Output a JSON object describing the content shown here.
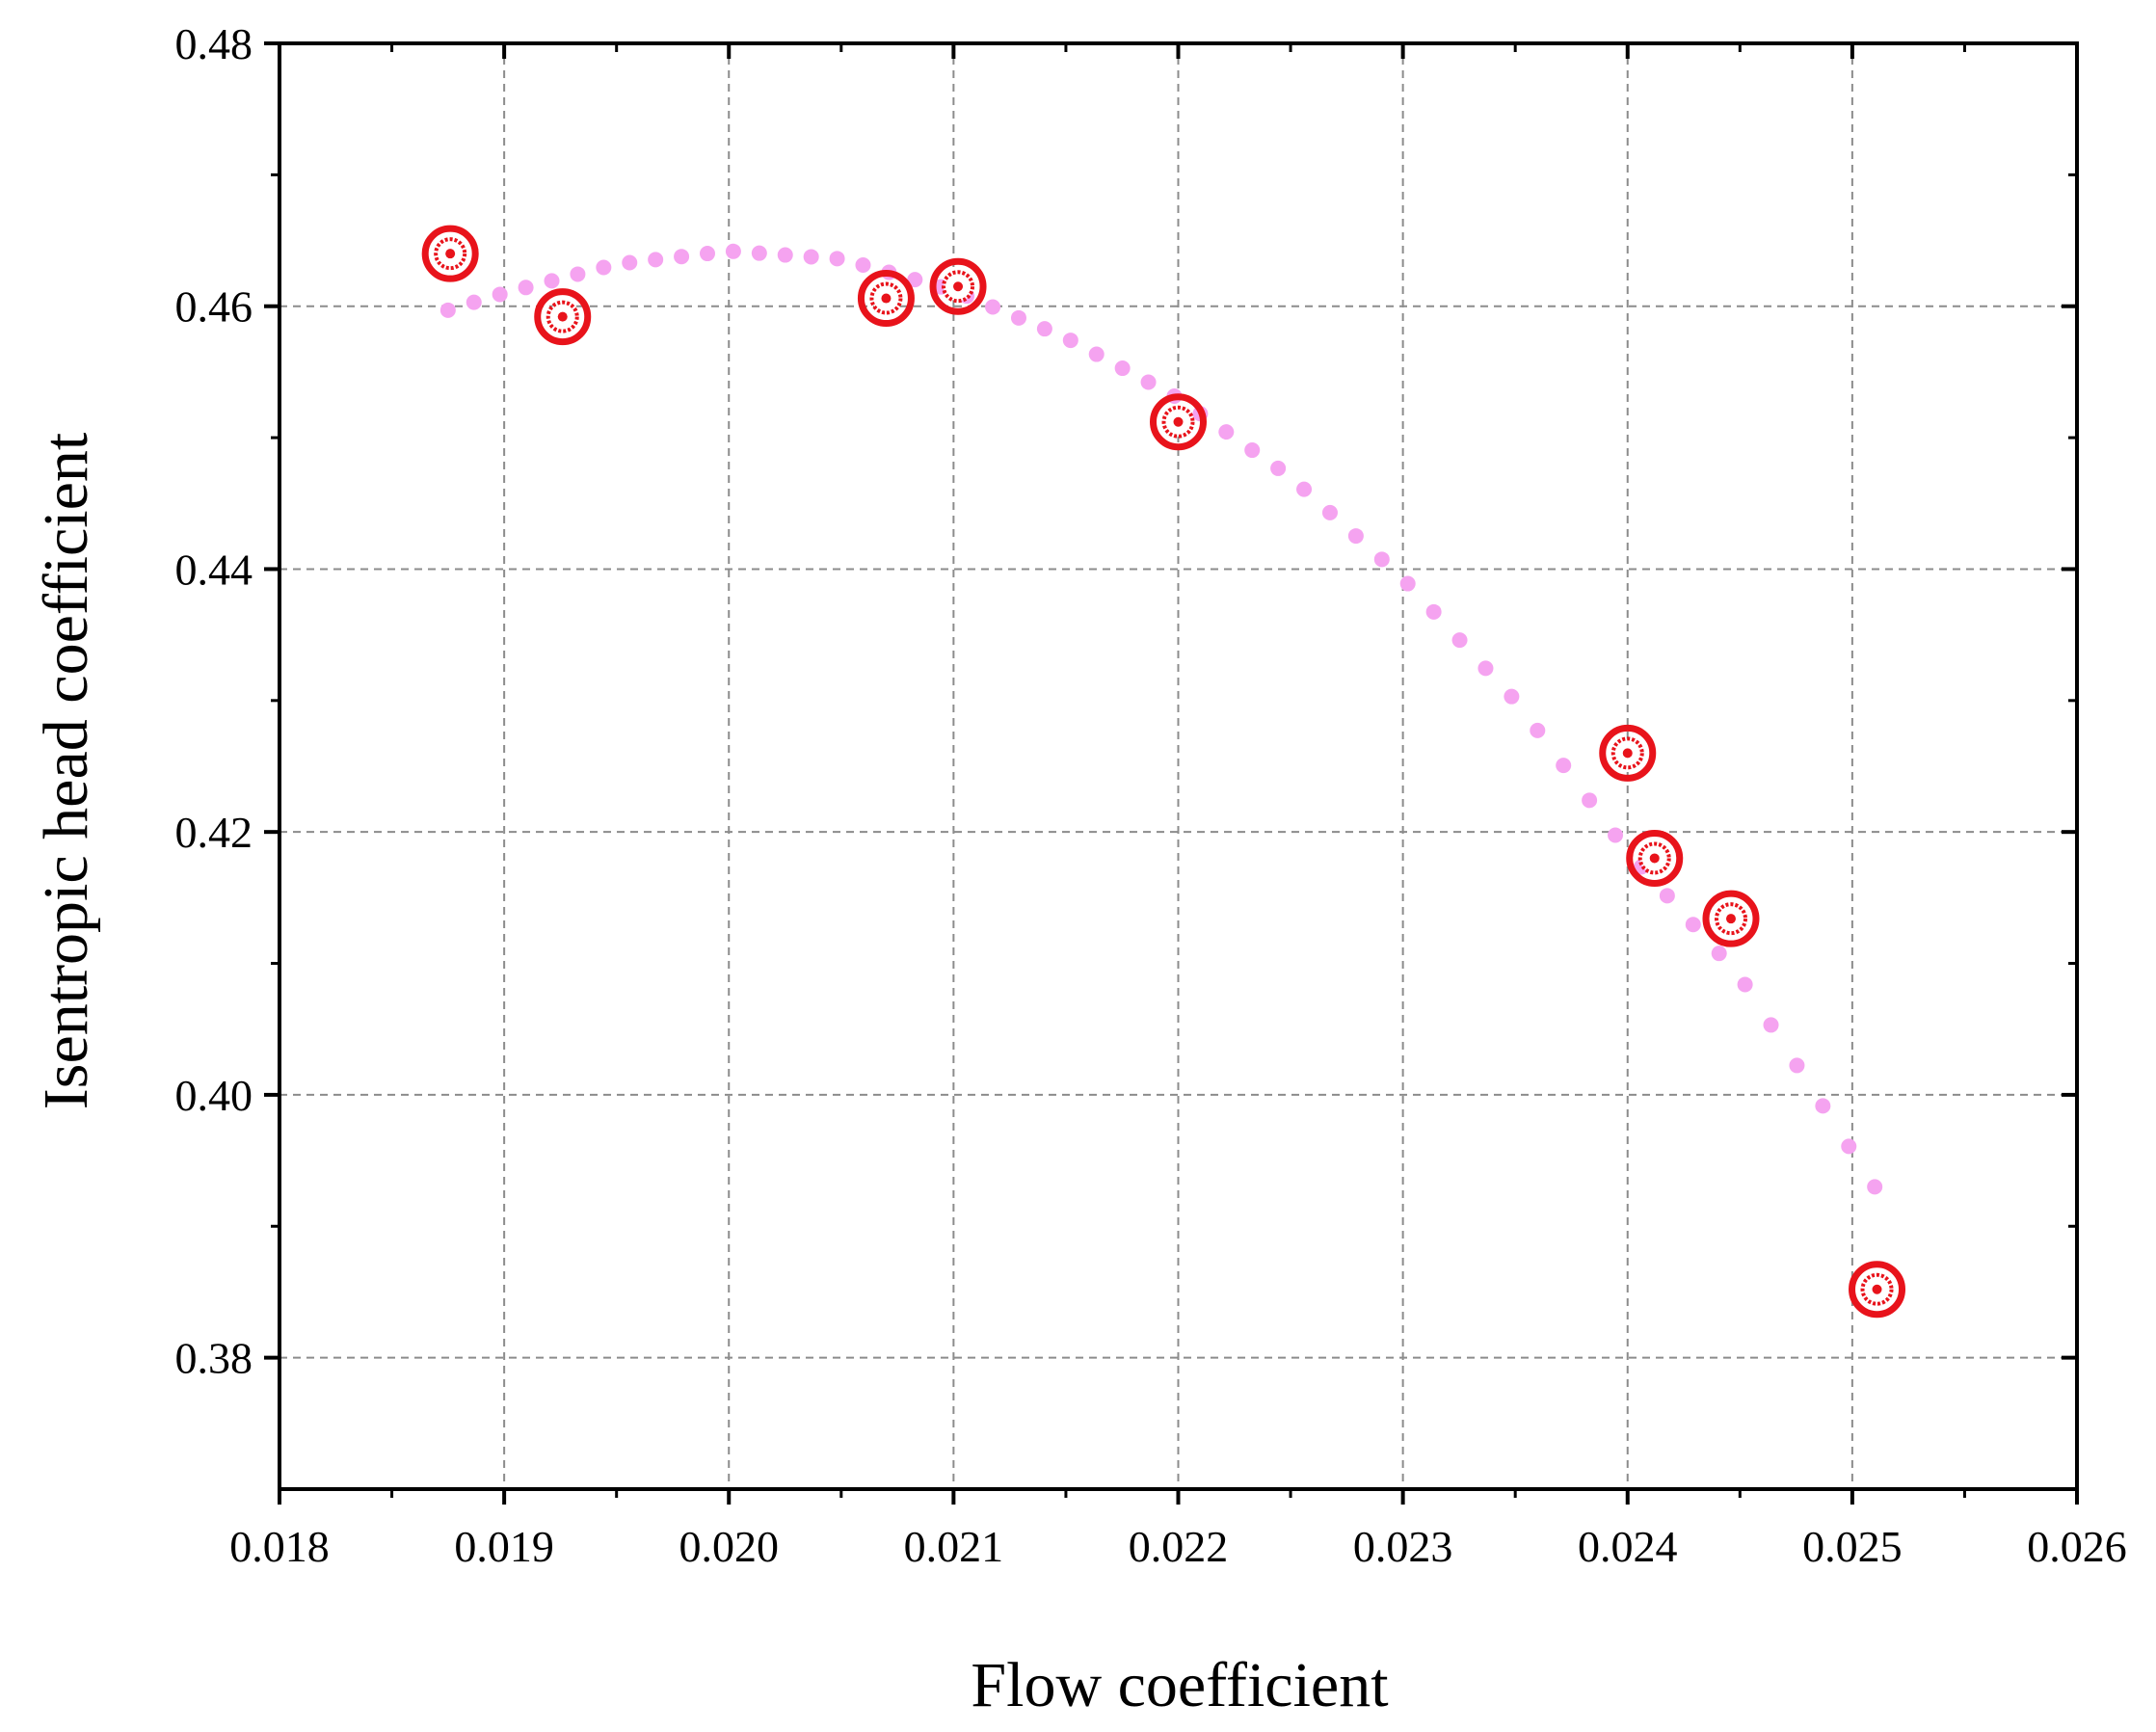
{
  "chart_data": {
    "type": "scatter",
    "title": "",
    "xlabel": "Flow coefficient",
    "ylabel": "Isentropic head coefficient",
    "xlim": [
      0.018,
      0.026
    ],
    "ylim": [
      0.37,
      0.48
    ],
    "x_ticks": [
      "0.018",
      "0.019",
      "0.020",
      "0.021",
      "0.022",
      "0.023",
      "0.024",
      "0.025",
      "0.026"
    ],
    "y_ticks": [
      "0.38",
      "0.40",
      "0.42",
      "0.44",
      "0.46",
      "0.48"
    ],
    "grid": true,
    "legend": "none",
    "series": [
      {
        "marker": "concentric-circle",
        "color": "#e8131b",
        "points": [
          {
            "x": 0.01876,
            "y": 0.464
          },
          {
            "x": 0.01926,
            "y": 0.4592
          },
          {
            "x": 0.0207,
            "y": 0.4606
          },
          {
            "x": 0.02102,
            "y": 0.4615
          },
          {
            "x": 0.022,
            "y": 0.4512
          },
          {
            "x": 0.024,
            "y": 0.426
          },
          {
            "x": 0.02412,
            "y": 0.418
          },
          {
            "x": 0.02446,
            "y": 0.4134
          },
          {
            "x": 0.02511,
            "y": 0.3852
          }
        ]
      },
      {
        "style": "dotted-fit-curve",
        "color": "#f5a3f0",
        "points": [
          {
            "x": 0.01875,
            "y": 0.4597
          },
          {
            "x": 0.019,
            "y": 0.461
          },
          {
            "x": 0.0195,
            "y": 0.4632
          },
          {
            "x": 0.02,
            "y": 0.4642
          },
          {
            "x": 0.0205,
            "y": 0.4636
          },
          {
            "x": 0.021,
            "y": 0.4612
          },
          {
            "x": 0.0215,
            "y": 0.4576
          },
          {
            "x": 0.022,
            "y": 0.453
          },
          {
            "x": 0.0225,
            "y": 0.447
          },
          {
            "x": 0.023,
            "y": 0.4393
          },
          {
            "x": 0.0235,
            "y": 0.43
          },
          {
            "x": 0.024,
            "y": 0.4185
          },
          {
            "x": 0.0245,
            "y": 0.409
          },
          {
            "x": 0.0251,
            "y": 0.393
          }
        ]
      }
    ]
  }
}
